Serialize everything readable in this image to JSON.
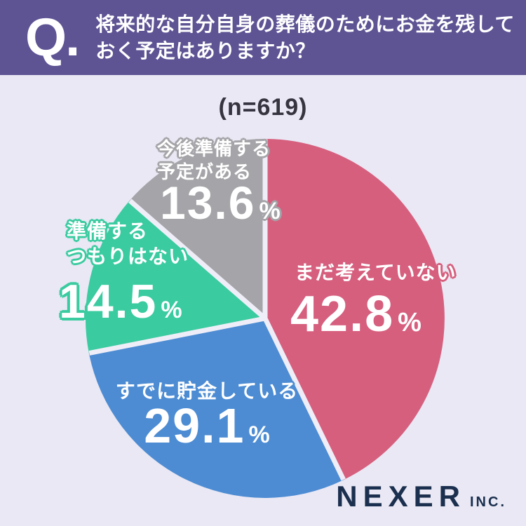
{
  "header": {
    "q_mark": "Q.",
    "question_lines": [
      "将来的な自分自身の葬儀のためにお金を残して",
      "おく予定はありますか？"
    ]
  },
  "sample_label": "(n=619)",
  "chart_data": {
    "type": "pie",
    "title": "将来的な自分自身の葬儀のためにお金を残しておく予定はありますか？",
    "sample_size": 619,
    "unit": "%",
    "start_angle_deg": 0,
    "direction": "clockwise",
    "segments": [
      {
        "label": "まだ考えていない",
        "label_lines": [
          "まだ考えていない"
        ],
        "value": 42.8,
        "color": "#d65f7e"
      },
      {
        "label": "すでに貯金している",
        "label_lines": [
          "すでに貯金している"
        ],
        "value": 29.1,
        "color": "#4d8cd3"
      },
      {
        "label": "準備するつもりはない",
        "label_lines": [
          "準備する",
          "つもりはない"
        ],
        "value": 14.5,
        "color": "#3bcba0"
      },
      {
        "label": "今後準備する予定がある",
        "label_lines": [
          "今後準備する",
          "予定がある"
        ],
        "value": 13.6,
        "color": "#a5a4a8"
      }
    ]
  },
  "footer": {
    "brand": "NEXER",
    "brand_suffix": "INC."
  },
  "colors": {
    "background": "#e9e8f4",
    "header_bg": "#5e5494",
    "text_dark": "#35343f",
    "logo_navy": "#1b2f4e",
    "label_text": "#ffffff",
    "segment_gap": "#efeef8"
  }
}
